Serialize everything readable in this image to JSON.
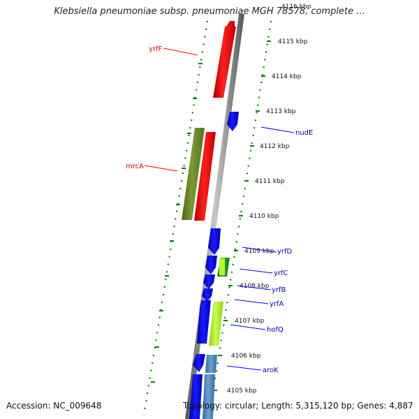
{
  "header": {
    "title": "Klebsiella pneumoniae subsp. pneumoniae MGH 78578, complete ..."
  },
  "footer": {
    "accession": "Accession: NC_009648",
    "stats": "Topology: circular; Length: 5,315,120 bp; Genes: 4,887"
  },
  "colors": {
    "forward_strand": "#ff0000",
    "reverse_strand": "#0000ff",
    "forward_alt": "#6b8e23",
    "reverse_alt": "#adff2f",
    "reverse_steel": "#4682b4",
    "reverse_green": "#228b22",
    "backbone": "#808080",
    "tick": "#008000",
    "forward_label": "#cc0000",
    "reverse_label": "#0000aa"
  },
  "ticks": [
    {
      "label": "4116 kbp"
    },
    {
      "label": "4115 kbp"
    },
    {
      "label": "4114 kbp"
    },
    {
      "label": "4113 kbp"
    },
    {
      "label": "4112 kbp"
    },
    {
      "label": "4111 kbp"
    },
    {
      "label": "4110 kbp"
    },
    {
      "label": "4109 kbp"
    },
    {
      "label": "4108 kbp"
    },
    {
      "label": "4107 kbp"
    },
    {
      "label": "4106 kbp"
    },
    {
      "label": "4105 kbp"
    }
  ],
  "gene_labels": [
    {
      "name": "yrfF",
      "strand": "forward"
    },
    {
      "name": "mrcA",
      "strand": "forward"
    },
    {
      "name": "nudE",
      "strand": "reverse"
    },
    {
      "name": "yrfD",
      "strand": "reverse"
    },
    {
      "name": "yrfC",
      "strand": "reverse"
    },
    {
      "name": "yrfB",
      "strand": "reverse"
    },
    {
      "name": "yrfA",
      "strand": "reverse"
    },
    {
      "name": "hofQ",
      "strand": "reverse"
    },
    {
      "name": "aroK",
      "strand": "reverse"
    }
  ]
}
